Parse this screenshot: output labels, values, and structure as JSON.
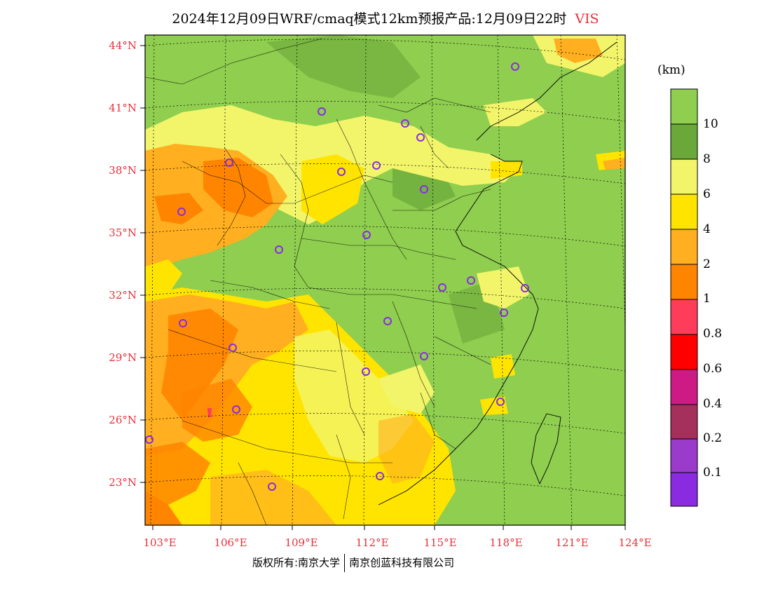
{
  "title": {
    "main": "2024年12月09日WRF/cmaq模式12km预报产品:12月09日22时",
    "variable": "VIS"
  },
  "lat_labels": [
    "44°N",
    "41°N",
    "38°N",
    "35°N",
    "32°N",
    "29°N",
    "26°N",
    "23°N"
  ],
  "lon_labels": [
    "103°E",
    "106°E",
    "109°E",
    "112°E",
    "115°E",
    "118°E",
    "121°E",
    "124°E"
  ],
  "colorbar": {
    "unit": "(km)",
    "labels": [
      "10",
      "8",
      "6",
      "4",
      "2",
      "1",
      "0.8",
      "0.6",
      "0.4",
      "0.2",
      "0.1"
    ],
    "colors": [
      "#8fce4f",
      "#6aa83a",
      "#f2f56a",
      "#ffe400",
      "#ffaf1f",
      "#ff8500",
      "#ff3d5a",
      "#ff0000",
      "#cd1a84",
      "#a5305c",
      "#9a3bcc",
      "#8a2be2"
    ]
  },
  "footer": {
    "left": "版权所有:南京大学",
    "right": "南京创蓝科技有限公司"
  },
  "colors": {
    "label_red": "#e8303a",
    "station_circle": "#8a2be2",
    "land_green": "#8fce4f"
  }
}
